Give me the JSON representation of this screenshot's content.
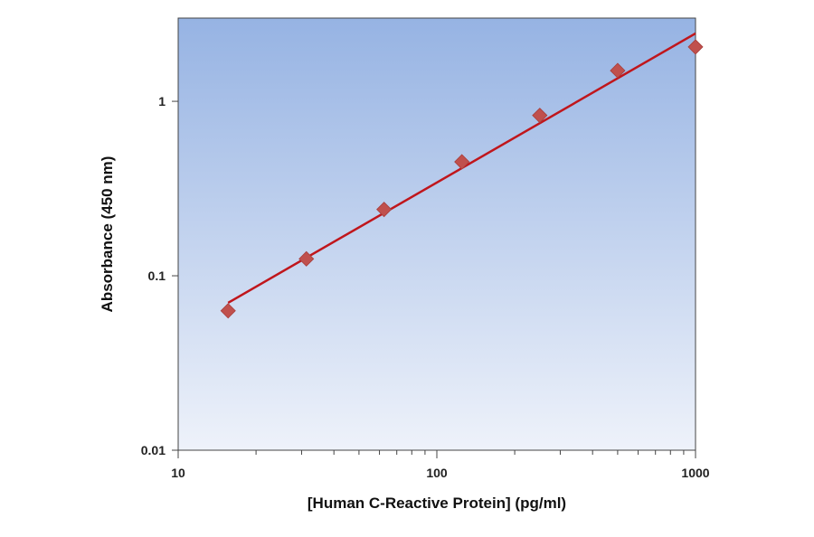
{
  "chart_data": {
    "type": "scatter",
    "title": "",
    "xlabel": "[Human C-Reactive Protein] (pg/ml)",
    "ylabel": "Absorbance (450 nm)",
    "x_scale": "log",
    "y_scale": "log",
    "xlim": [
      10,
      1000
    ],
    "ylim": [
      0.01,
      3
    ],
    "x_ticks": [
      10,
      100,
      1000
    ],
    "x_tick_labels": [
      "10",
      "100",
      "1000"
    ],
    "y_ticks": [
      0.01,
      0.1,
      1
    ],
    "y_tick_labels": [
      "0.01",
      "0.1",
      "1"
    ],
    "grid": false,
    "legend": "none",
    "series": [
      {
        "kind": "points",
        "marker": "diamond",
        "color": "#c0504d",
        "x": [
          15.6,
          31.3,
          62.5,
          125,
          250,
          500,
          1000
        ],
        "y": [
          0.063,
          0.125,
          0.24,
          0.45,
          0.83,
          1.5,
          2.05
        ]
      },
      {
        "kind": "fit-line",
        "color": "#c0161c",
        "x": [
          15.6,
          1000
        ],
        "y": [
          0.07,
          2.45
        ]
      }
    ],
    "plot_background": {
      "top": "#96b3e3",
      "bottom": "#eef2fa"
    }
  }
}
